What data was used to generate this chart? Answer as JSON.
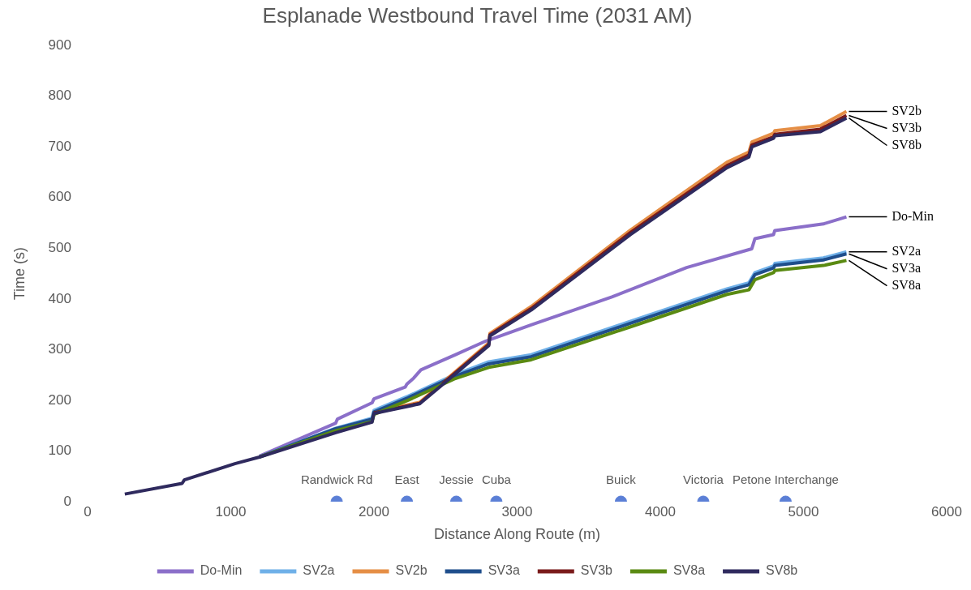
{
  "chart_data": {
    "type": "line",
    "title": "Esplanade Westbound Travel Time (2031 AM)",
    "xlabel": "Distance Along Route (m)",
    "ylabel": "Time (s)",
    "xlim": [
      0,
      6000
    ],
    "xticks": [
      0,
      1000,
      2000,
      3000,
      4000,
      5000,
      6000
    ],
    "ylim": [
      0,
      900
    ],
    "yticks": [
      0,
      100,
      200,
      300,
      400,
      500,
      600,
      700,
      800,
      900
    ],
    "grid": false,
    "legend": "bottom",
    "series": [
      {
        "name": "Do-Min",
        "color": "#8b6fc9",
        "x": [
          1200,
          1733,
          1745,
          1987,
          2000,
          2218,
          2230,
          2278,
          2328,
          2570,
          2782,
          3098,
          3662,
          4184,
          4639,
          4661,
          4791,
          4800,
          5139,
          5300
        ],
        "values": [
          90,
          155,
          163,
          195,
          203,
          226,
          232,
          244,
          260,
          290,
          317,
          349,
          404,
          462,
          499,
          519,
          527,
          535,
          548,
          562
        ]
      },
      {
        "name": "SV2a",
        "color": "#6fb0e8",
        "x": [
          1200,
          1733,
          1987,
          2000,
          2238,
          2560,
          2802,
          3098,
          3792,
          4466,
          4619,
          4661,
          4791,
          4800,
          5139,
          5300
        ],
        "values": [
          88,
          145,
          165,
          180,
          208,
          250,
          276,
          290,
          356,
          420,
          432,
          452,
          465,
          470,
          481,
          493
        ]
      },
      {
        "name": "SV2b",
        "color": "#e58e45",
        "x": [
          2000,
          2319,
          2500,
          2802,
          2810,
          3098,
          3792,
          4184,
          4466,
          4619,
          4640,
          4791,
          4800,
          5118,
          5300
        ],
        "values": [
          177,
          196,
          240,
          313,
          332,
          385,
          536,
          614,
          670,
          690,
          710,
          727,
          732,
          742,
          770
        ]
      },
      {
        "name": "SV3a",
        "color": "#1f4e8c",
        "x": [
          1200,
          1733,
          1987,
          2000,
          2238,
          2560,
          2802,
          3098,
          3792,
          4466,
          4619,
          4661,
          4791,
          4800,
          5139,
          5300
        ],
        "values": [
          88,
          144,
          163,
          177,
          205,
          247,
          272,
          286,
          352,
          416,
          428,
          448,
          461,
          466,
          477,
          489
        ]
      },
      {
        "name": "SV3b",
        "color": "#7a1a1a",
        "x": [
          2000,
          2319,
          2500,
          2802,
          2810,
          3098,
          3792,
          4184,
          4466,
          4619,
          4640,
          4791,
          4800,
          5118,
          5300
        ],
        "values": [
          175,
          194,
          238,
          310,
          329,
          381,
          531,
          608,
          663,
          684,
          704,
          720,
          725,
          735,
          762
        ]
      },
      {
        "name": "SV8a",
        "color": "#5a8a12",
        "x": [
          1200,
          1733,
          1987,
          2000,
          2238,
          2560,
          2802,
          3098,
          3792,
          4466,
          4619,
          4661,
          4791,
          4800,
          5139,
          5300
        ],
        "values": [
          88,
          140,
          158,
          172,
          200,
          242,
          265,
          280,
          345,
          409,
          418,
          438,
          452,
          456,
          466,
          476
        ]
      },
      {
        "name": "SV8b",
        "color": "#2f2a5e",
        "x": [
          260,
          660,
          676,
          1029,
          1200,
          1733,
          1987,
          2000,
          2319,
          2500,
          2802,
          2810,
          3098,
          3792,
          4184,
          4466,
          4619,
          4640,
          4791,
          4800,
          5118,
          5300
        ],
        "values": [
          15,
          36,
          43,
          75,
          88,
          136,
          157,
          174,
          193,
          236,
          308,
          327,
          378,
          527,
          604,
          659,
          680,
          700,
          717,
          722,
          730,
          757
        ]
      },
      {
        "type": "scatter",
        "marker": "circle",
        "color": "#5b7fd6",
        "x": [
          1740,
          2230,
          2575,
          2855,
          3725,
          4300,
          4875
        ],
        "values": [
          0,
          0,
          0,
          0,
          0,
          0,
          0
        ]
      }
    ],
    "annotations": [
      {
        "text": "Randwick Rd",
        "x": 1740,
        "y": 0
      },
      {
        "text": "East",
        "x": 2230,
        "y": 0
      },
      {
        "text": "Jessie",
        "x": 2575,
        "y": 0
      },
      {
        "text": "Cuba",
        "x": 2855,
        "y": 0
      },
      {
        "text": "Buick",
        "x": 3725,
        "y": 0
      },
      {
        "text": "Victoria",
        "x": 4300,
        "y": 0
      },
      {
        "text": "Petone Interchange",
        "x": 4875,
        "y": 0
      },
      {
        "text": "SV2b",
        "x": 5300,
        "y": 770
      },
      {
        "text": "SV3b",
        "x": 5300,
        "y": 762
      },
      {
        "text": "SV8b",
        "x": 5300,
        "y": 757
      },
      {
        "text": "Do-Min",
        "x": 5300,
        "y": 562
      },
      {
        "text": "SV2a",
        "x": 5300,
        "y": 493
      },
      {
        "text": "SV3a",
        "x": 5300,
        "y": 489
      },
      {
        "text": "SV8a",
        "x": 5300,
        "y": 476
      }
    ]
  }
}
